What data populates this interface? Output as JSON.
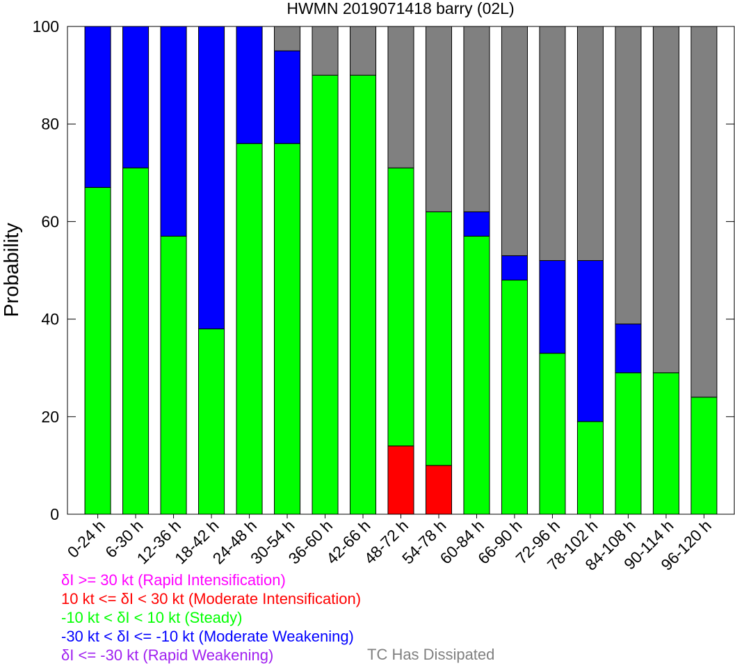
{
  "chart_data": {
    "type": "bar",
    "stacked": true,
    "title": "HWMN 2019071418 barry (02L)",
    "ylabel": "Probability",
    "xlabel": "",
    "ylim": [
      0,
      100
    ],
    "yticks": [
      "0",
      "20",
      "40",
      "60",
      "80",
      "100"
    ],
    "categories": [
      "0-24 h",
      "6-30 h",
      "12-36 h",
      "18-42 h",
      "24-48 h",
      "30-54 h",
      "36-60 h",
      "42-66 h",
      "48-72 h",
      "54-78 h",
      "60-84 h",
      "66-90 h",
      "72-96 h",
      "78-102 h",
      "84-108 h",
      "90-114 h",
      "96-120 h"
    ],
    "series": [
      {
        "name": "δI <= -30 kt (Rapid Weakening)",
        "color": "#a020f0",
        "values": [
          0,
          0,
          0,
          0,
          0,
          0,
          0,
          0,
          0,
          0,
          0,
          0,
          0,
          0,
          0,
          0,
          0
        ]
      },
      {
        "name": "-30 kt < δI <= -10 kt (Moderate Weakening)",
        "color": "#0000ff",
        "values": [
          33,
          29,
          43,
          62,
          24,
          19,
          0,
          0,
          0,
          0,
          5,
          5,
          19,
          33,
          10,
          0,
          0
        ]
      },
      {
        "name": "-10 kt < δI < 10 kt (Steady)",
        "color": "#00ff00",
        "values": [
          67,
          71,
          57,
          38,
          76,
          76,
          90,
          90,
          57,
          52,
          57,
          48,
          33,
          19,
          29,
          29,
          24
        ]
      },
      {
        "name": "10 kt <= δI < 30 kt (Moderate Intensification)",
        "color": "#ff0000",
        "values": [
          0,
          0,
          0,
          0,
          0,
          0,
          0,
          0,
          14,
          10,
          0,
          0,
          0,
          0,
          0,
          0,
          0
        ]
      },
      {
        "name": "δI >= 30 kt (Rapid Intensification)",
        "color": "#ff00ff",
        "values": [
          0,
          0,
          0,
          0,
          0,
          0,
          0,
          0,
          0,
          0,
          0,
          0,
          0,
          0,
          0,
          0,
          0
        ]
      },
      {
        "name": "TC Has Dissipated",
        "color": "#808080",
        "values": [
          0,
          0,
          0,
          0,
          0,
          5,
          10,
          10,
          29,
          38,
          38,
          47,
          48,
          48,
          61,
          71,
          76
        ]
      }
    ],
    "stack_order": [
      "10 kt <= δI < 30 kt (Moderate Intensification)",
      "-10 kt < δI < 10 kt (Steady)",
      "-30 kt < δI <= -10 kt (Moderate Weakening)",
      "TC Has Dissipated"
    ],
    "grid": false,
    "legend": "below"
  },
  "legend": {
    "rapid_intensification": "δI >= 30 kt (Rapid Intensification)",
    "moderate_intensification": "10 kt <= δI < 30 kt (Moderate Intensification)",
    "steady": "-10 kt < δI < 10 kt (Steady)",
    "moderate_weakening": "-30 kt < δI <= -10 kt (Moderate Weakening)",
    "rapid_weakening": "δI <= -30 kt (Rapid Weakening)",
    "dissipated": "TC Has Dissipated"
  },
  "colors": {
    "rapid_intensification": "#ff00ff",
    "moderate_intensification": "#ff0000",
    "steady": "#00ff00",
    "moderate_weakening": "#0000ff",
    "rapid_weakening": "#a020f0",
    "dissipated": "#808080"
  }
}
